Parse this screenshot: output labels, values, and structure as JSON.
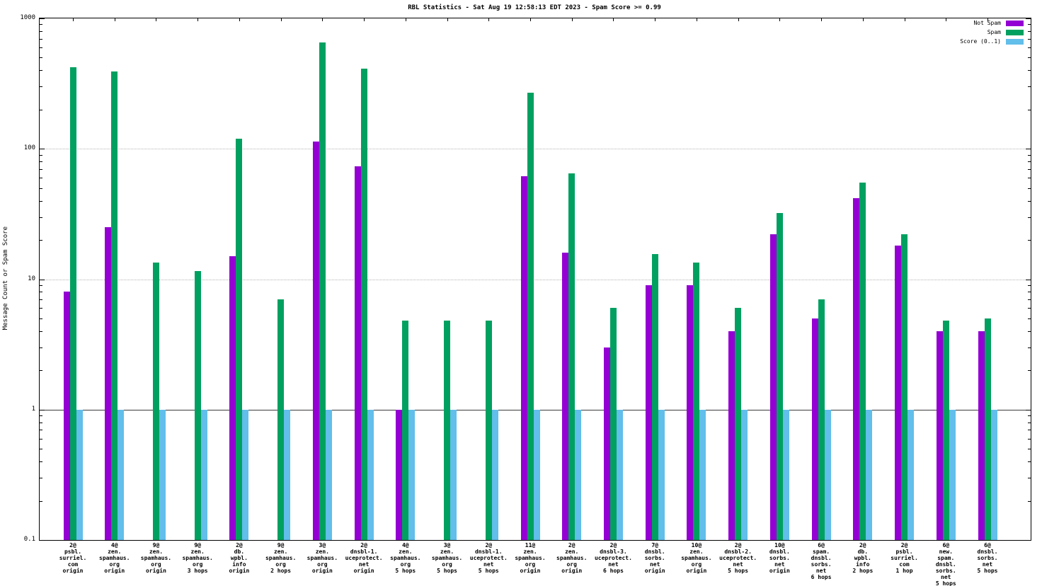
{
  "chart_data": {
    "type": "bar",
    "title": "RBL Statistics - Sat Aug 19 12:58:13 EDT 2023 - Spam Score >= 0.99",
    "xlabel": "",
    "ylabel": "Message Count or Spam Score",
    "yscale": "log",
    "ylim": [
      0.1,
      1000
    ],
    "y_ticks": [
      0.1,
      1,
      10,
      100,
      1000
    ],
    "grid": true,
    "legend_position": "top-right",
    "categories": [
      [
        "2@",
        "psbl.",
        "surriel.",
        "com",
        "origin"
      ],
      [
        "4@",
        "zen.",
        "spamhaus.",
        "org",
        "origin"
      ],
      [
        "9@",
        "zen.",
        "spamhaus.",
        "org",
        "origin"
      ],
      [
        "9@",
        "zen.",
        "spamhaus.",
        "org",
        "3 hops"
      ],
      [
        "2@",
        "db.",
        "wpbl.",
        "info",
        "origin"
      ],
      [
        "9@",
        "zen.",
        "spamhaus.",
        "org",
        "2 hops"
      ],
      [
        "3@",
        "zen.",
        "spamhaus.",
        "org",
        "origin"
      ],
      [
        "2@",
        "dnsbl-1.",
        "uceprotect.",
        "net",
        "origin"
      ],
      [
        "4@",
        "zen.",
        "spamhaus.",
        "org",
        "5 hops"
      ],
      [
        "3@",
        "zen.",
        "spamhaus.",
        "org",
        "5 hops"
      ],
      [
        "2@",
        "dnsbl-1.",
        "uceprotect.",
        "net",
        "5 hops"
      ],
      [
        "11@",
        "zen.",
        "spamhaus.",
        "org",
        "origin"
      ],
      [
        "2@",
        "zen.",
        "spamhaus.",
        "org",
        "origin"
      ],
      [
        "2@",
        "dnsbl-3.",
        "uceprotect.",
        "net",
        "6 hops"
      ],
      [
        "7@",
        "dnsbl.",
        "sorbs.",
        "net",
        "origin"
      ],
      [
        "10@",
        "zen.",
        "spamhaus.",
        "org",
        "origin"
      ],
      [
        "2@",
        "dnsbl-2.",
        "uceprotect.",
        "net",
        "5 hops"
      ],
      [
        "10@",
        "dnsbl.",
        "sorbs.",
        "net",
        "origin"
      ],
      [
        "6@",
        "spam.",
        "dnsbl.",
        "sorbs.",
        "net",
        "6 hops"
      ],
      [
        "2@",
        "db.",
        "wpbl.",
        "info",
        "2 hops"
      ],
      [
        "2@",
        "psbl.",
        "surriel.",
        "com",
        "1 hop"
      ],
      [
        "6@",
        "new.",
        "spam.",
        "dnsbl.",
        "sorbs.",
        "net",
        "5 hops"
      ],
      [
        "6@",
        "dnsbl.",
        "sorbs.",
        "net",
        "5 hops"
      ]
    ],
    "series": [
      {
        "name": "Not Spam",
        "color": "#9400d3",
        "values": [
          8,
          25,
          null,
          null,
          15,
          null,
          113,
          73,
          1,
          null,
          null,
          62,
          16,
          3,
          9,
          9,
          4,
          22,
          5,
          42,
          18,
          4,
          4
        ]
      },
      {
        "name": "Spam",
        "color": "#00a060",
        "values": [
          420,
          390,
          13.5,
          11.5,
          120,
          7,
          650,
          410,
          4.8,
          4.8,
          4.8,
          270,
          65,
          6,
          15.5,
          13.5,
          6,
          32,
          7,
          55,
          22,
          4.8,
          5
        ]
      },
      {
        "name": "Score (0..1)",
        "color": "#62beea",
        "values": [
          1,
          1,
          1,
          1,
          1,
          1,
          1,
          1,
          1,
          1,
          1,
          1,
          1,
          1,
          1,
          1,
          1,
          1,
          1,
          1,
          1,
          1,
          1
        ]
      }
    ]
  }
}
